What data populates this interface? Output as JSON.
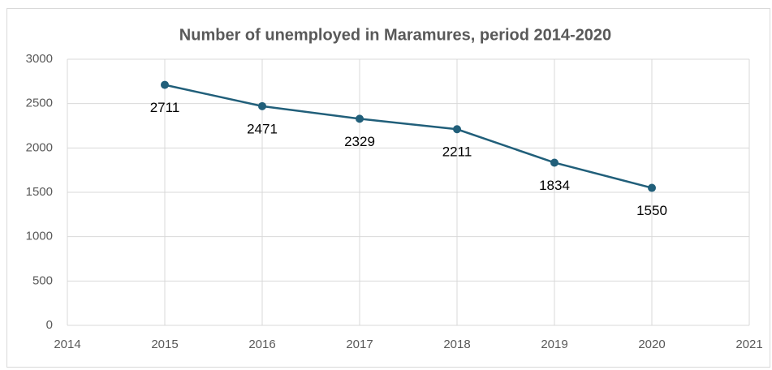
{
  "chart_data": {
    "type": "line",
    "title": "Number of unemployed in Maramures, period 2014-2020",
    "x": [
      2015,
      2016,
      2017,
      2018,
      2019,
      2020
    ],
    "series": [
      {
        "name": "Number of unemployed",
        "color": "#215f7a",
        "values": [
          2711,
          2471,
          2329,
          2211,
          1834,
          1550
        ]
      }
    ],
    "xlim": [
      2014,
      2021
    ],
    "xticks": [
      2014,
      2015,
      2016,
      2017,
      2018,
      2019,
      2020,
      2021
    ],
    "ylim": [
      0,
      3000
    ],
    "yticks": [
      0,
      500,
      1000,
      1500,
      2000,
      2500,
      3000
    ],
    "grid": true
  }
}
